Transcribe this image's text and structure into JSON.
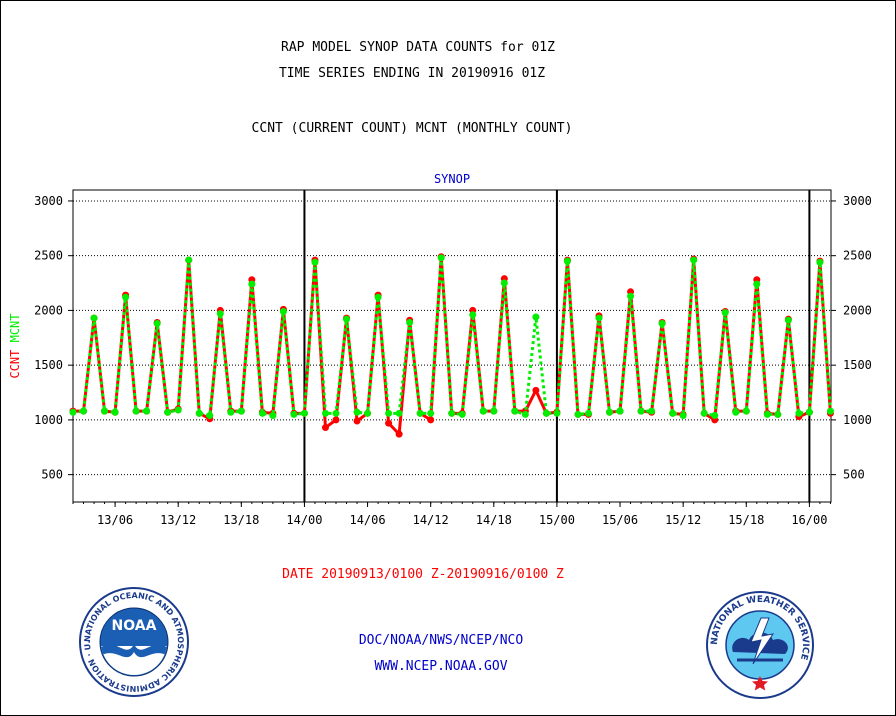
{
  "header": {
    "title_line1": "RAP MODEL SYNOP DATA COUNTS for 01Z",
    "title_line2": "TIME SERIES ENDING IN 20190916 01Z",
    "subtitle": "CCNT (CURRENT COUNT) MCNT (MONTHLY COUNT)"
  },
  "footer": {
    "date_range": "DATE 20190913/0100 Z-20190916/0100 Z",
    "agency": "DOC/NOAA/NWS/NCEP/NCO",
    "url": "WWW.NCEP.NOAA.GOV"
  },
  "logos": {
    "noaa_text": "NOAA",
    "noaa_ring": "NATIONAL OCEANIC AND ATMOSPHERIC ADMINISTRATION · U.S. DEPARTMENT OF COMMERCE ·",
    "nws_ring": "NATIONAL WEATHER SERVICE"
  },
  "colors": {
    "ccnt": "#ff0000",
    "mcnt": "#00ee00",
    "panel_title": "#0000cc",
    "footer_blue": "#0000cc",
    "date_red": "#ff0000"
  },
  "chart_data": {
    "type": "line",
    "title": "SYNOP",
    "ylabel_parts": [
      "CCNT",
      "MCNT"
    ],
    "ylim": [
      250,
      3100
    ],
    "yticks": [
      500,
      1000,
      1500,
      2000,
      2500,
      3000
    ],
    "ytick_labels": [
      "500",
      "1000",
      "1500",
      "2000",
      "2500",
      "3000"
    ],
    "x_step_hours": 1,
    "x_start": "13/02",
    "xtick_labels": [
      "13/06",
      "13/12",
      "13/18",
      "14/00",
      "14/06",
      "14/12",
      "14/18",
      "15/00",
      "15/06",
      "15/12",
      "15/18",
      "16/00"
    ],
    "xtick_index": [
      4,
      10,
      16,
      22,
      28,
      34,
      40,
      46,
      52,
      58,
      64,
      70
    ],
    "day_boundaries_index": [
      22,
      46,
      70
    ],
    "grid": true,
    "series": [
      {
        "name": "CCNT",
        "color": "#ff0000",
        "style": "solid",
        "values": [
          1080,
          1080,
          1930,
          1080,
          1070,
          2140,
          1080,
          1080,
          1890,
          1070,
          1100,
          2460,
          1060,
          1010,
          2000,
          1080,
          1080,
          2280,
          1070,
          1060,
          2010,
          1060,
          1060,
          2460,
          930,
          1000,
          1930,
          990,
          1060,
          2140,
          970,
          870,
          1910,
          1060,
          1000,
          2490,
          1060,
          1060,
          2000,
          1080,
          1080,
          2290,
          1080,
          1080,
          1270,
          1060,
          1070,
          2460,
          1050,
          1050,
          1950,
          1070,
          1080,
          2170,
          1080,
          1070,
          1890,
          1060,
          1050,
          2470,
          1060,
          1000,
          1990,
          1080,
          1080,
          2280,
          1060,
          1050,
          1920,
          1030,
          1070,
          2450,
          1060
        ]
      },
      {
        "name": "MCNT",
        "color": "#00ee00",
        "style": "dotted",
        "values": [
          1070,
          1080,
          1930,
          1080,
          1070,
          2120,
          1080,
          1080,
          1880,
          1070,
          1090,
          2460,
          1060,
          1040,
          1970,
          1070,
          1080,
          2240,
          1060,
          1040,
          1990,
          1050,
          1060,
          2440,
          1060,
          1060,
          1920,
          1070,
          1060,
          2120,
          1060,
          1060,
          1890,
          1060,
          1060,
          2480,
          1060,
          1050,
          1960,
          1080,
          1080,
          2250,
          1080,
          1050,
          1940,
          1060,
          1060,
          2450,
          1050,
          1060,
          1930,
          1070,
          1080,
          2130,
          1080,
          1080,
          1880,
          1060,
          1040,
          2460,
          1060,
          1040,
          1980,
          1070,
          1080,
          2240,
          1050,
          1050,
          1910,
          1060,
          1070,
          2440,
          1080
        ]
      }
    ]
  }
}
